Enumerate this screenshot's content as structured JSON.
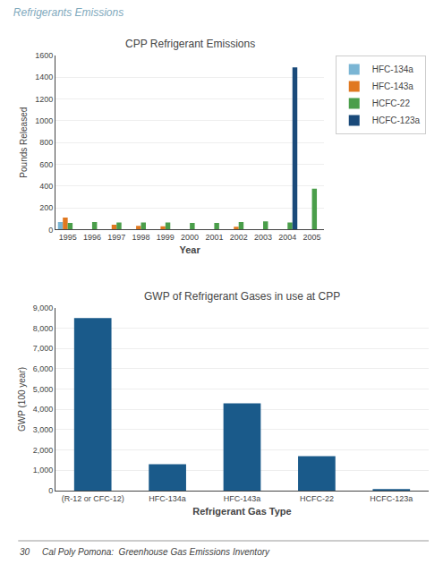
{
  "title": "Refrigerants Emissions",
  "annotations": [
    "30     Cal Poly Pomona:  Greenhouse Gas Emissions Inventory"
  ],
  "chart_data": [
    {
      "type": "bar",
      "title": "CPP Refrigerant Emissions",
      "xlabel": "Year",
      "ylabel": "Pounds Released",
      "categories": [
        1995,
        1996,
        1997,
        1998,
        1999,
        2000,
        2001,
        2002,
        2003,
        2004,
        2005
      ],
      "series": [
        {
          "name": "HFC-134a",
          "color": "#7ab5d4",
          "values": [
            70,
            0,
            0,
            0,
            0,
            0,
            0,
            0,
            0,
            0,
            0
          ]
        },
        {
          "name": "HFC-143a",
          "color": "#e07820",
          "values": [
            110,
            0,
            45,
            35,
            30,
            0,
            0,
            25,
            0,
            0,
            0
          ]
        },
        {
          "name": "HCFC-22",
          "color": "#4a9e4a",
          "values": [
            60,
            70,
            65,
            65,
            65,
            60,
            60,
            70,
            75,
            65,
            375
          ]
        },
        {
          "name": "HCFC-123a",
          "color": "#1a4a7a",
          "values": [
            0,
            0,
            0,
            0,
            0,
            0,
            0,
            0,
            0,
            1490,
            0
          ]
        }
      ],
      "ylim": [
        0,
        1600
      ],
      "yticks": [
        0,
        200,
        400,
        600,
        800,
        1000,
        1200,
        1400,
        1600
      ],
      "grid": true,
      "legend": "right"
    },
    {
      "type": "bar",
      "title": "GWP of Refrigerant Gases in use at CPP",
      "xlabel": "Refrigerant Gas Type",
      "ylabel": "GWP (100 year)",
      "categories": [
        "(R-12 or CFC-12)",
        "HFC-134a",
        "HFC-143a",
        "HCFC-22",
        "HCFC-123a"
      ],
      "values": [
        8500,
        1300,
        4300,
        1700,
        77
      ],
      "color": "#1a5a8a",
      "ylim": [
        0,
        9000
      ],
      "yticks": [
        0,
        {
          "value": 1000,
          "label": "1,000"
        },
        {
          "value": 2000,
          "label": "2,000"
        },
        {
          "value": 3000,
          "label": "3,000"
        },
        {
          "value": 4000,
          "label": "4,000"
        },
        {
          "value": 5000,
          "label": "5,000"
        },
        {
          "value": 6000,
          "label": "6,000"
        },
        {
          "value": 7000,
          "label": "7,000"
        },
        {
          "value": 8000,
          "label": "8,000"
        },
        {
          "value": 9000,
          "label": "9,000"
        }
      ],
      "grid": true
    }
  ]
}
